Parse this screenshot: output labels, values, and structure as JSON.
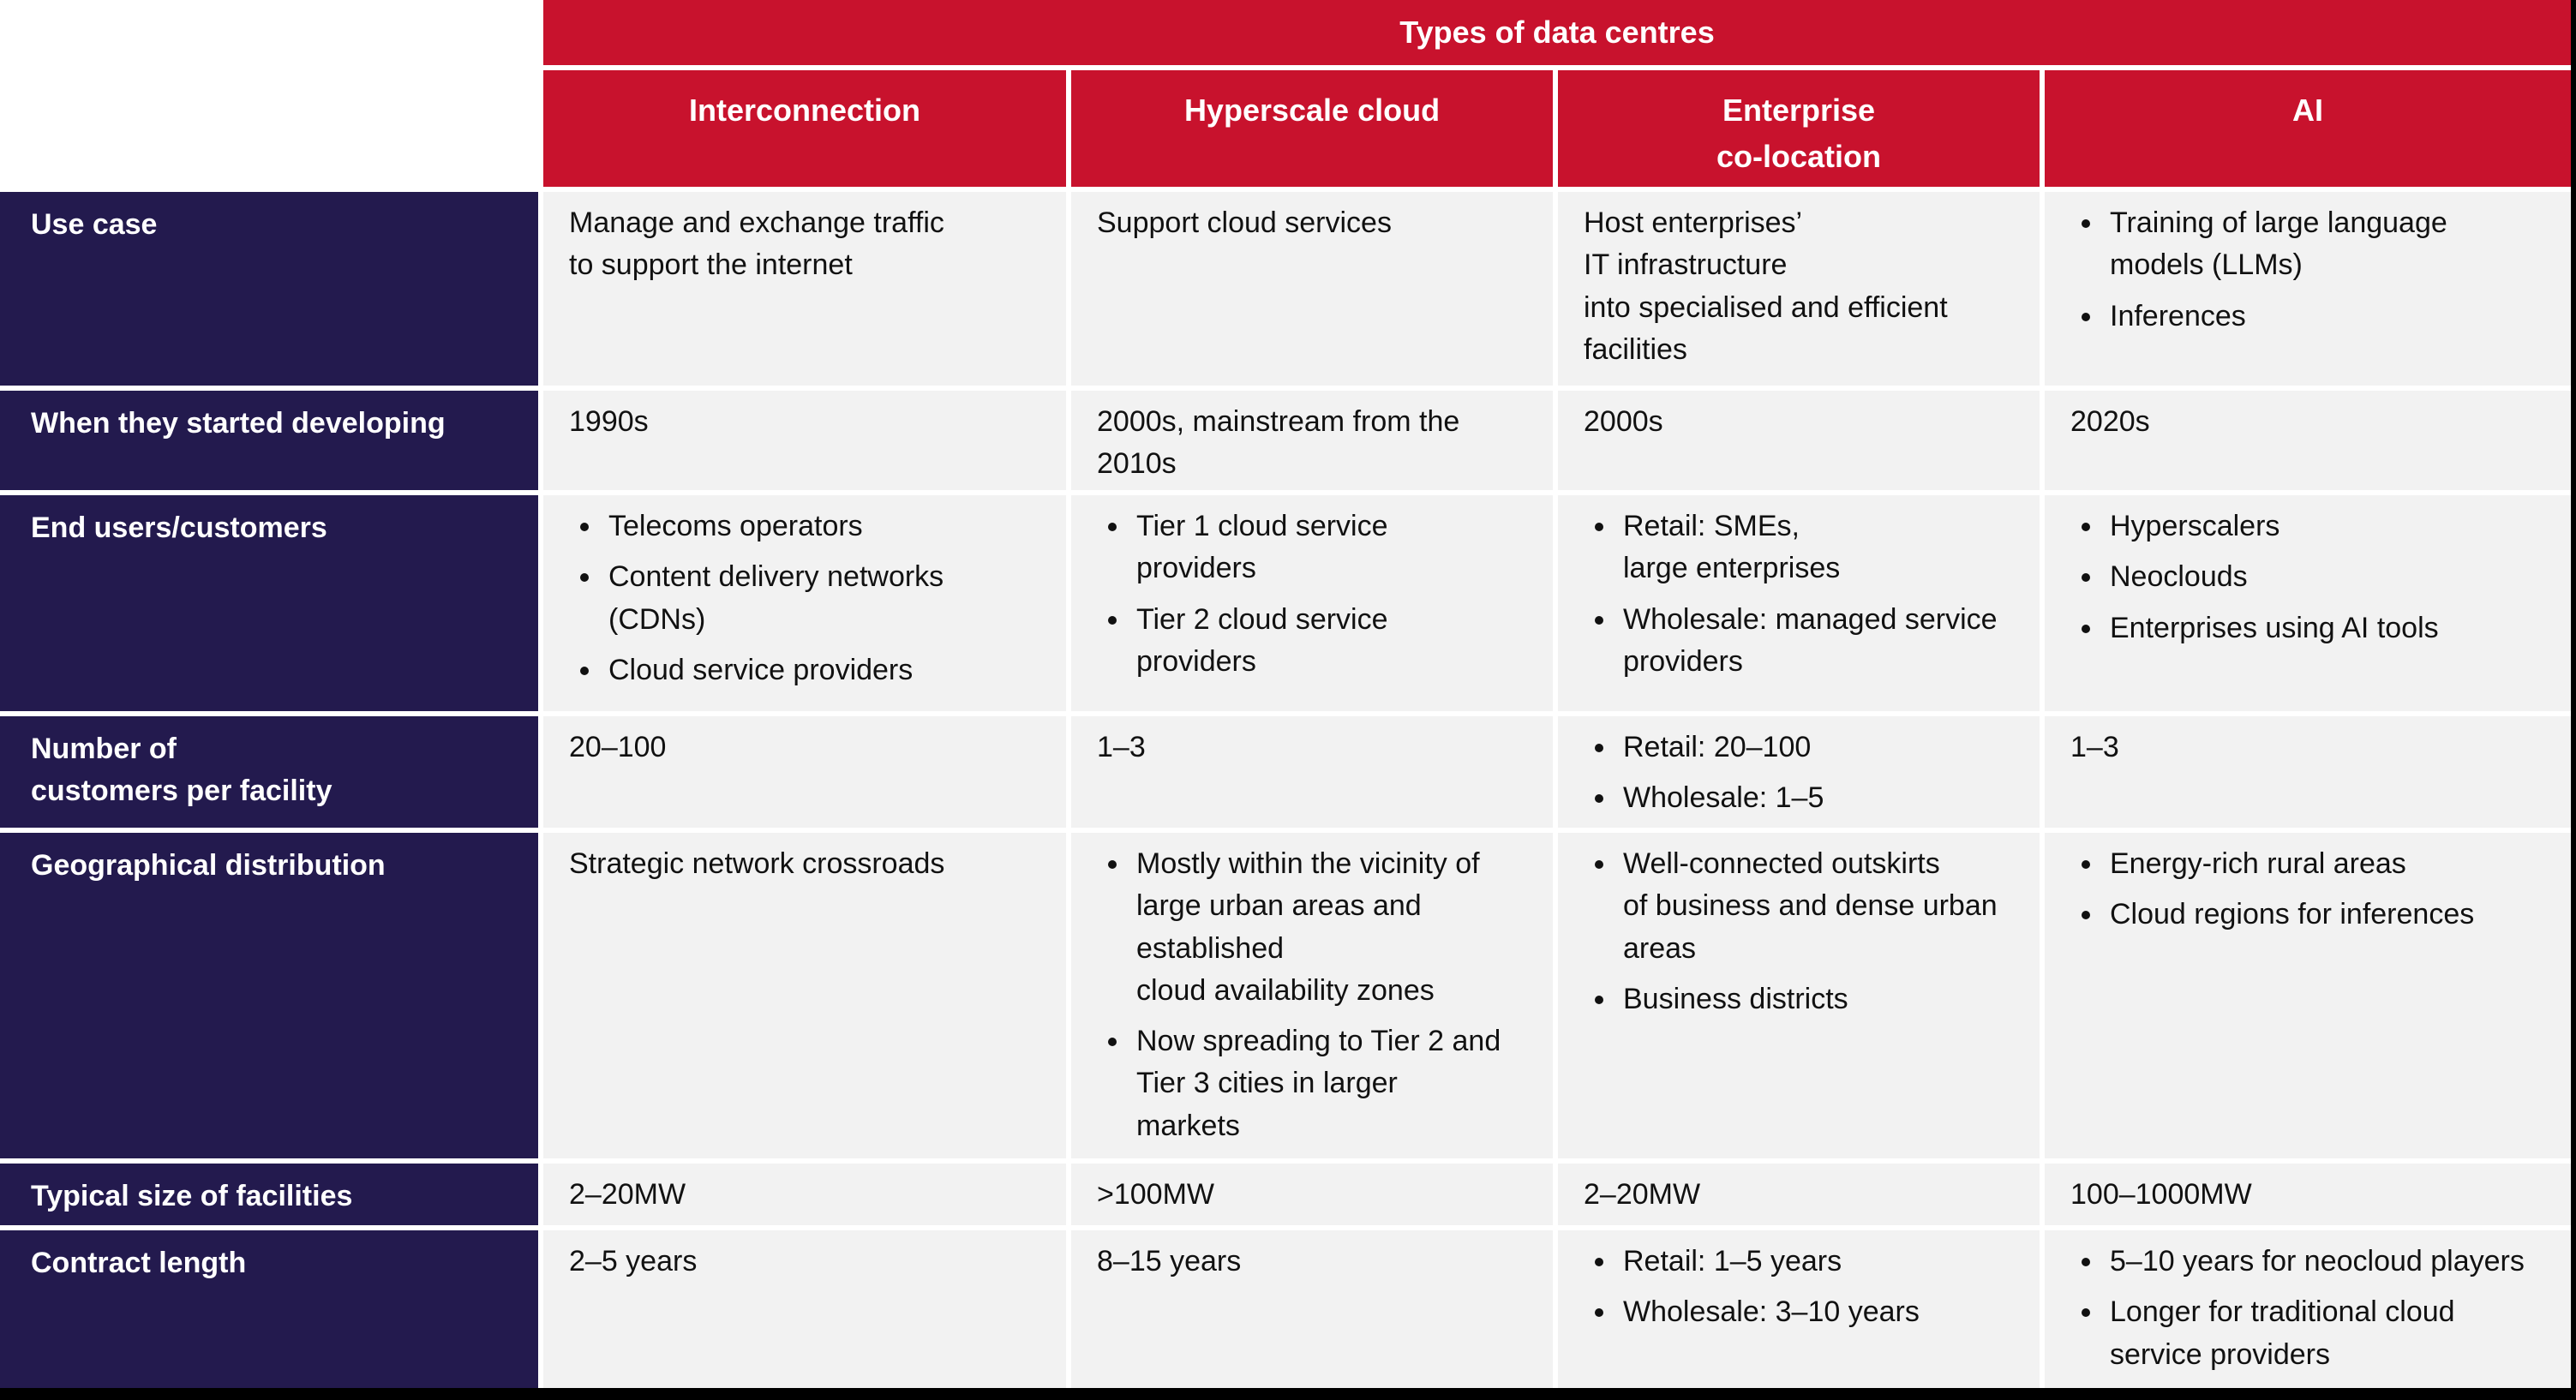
{
  "colors": {
    "header_red": "#C8122D",
    "label_navy": "#231A4E",
    "cell_gray": "#F2F2F2",
    "separator_white": "#FFFFFF",
    "edge_black": "#000000"
  },
  "table": {
    "title": "Types of data centres",
    "columns": [
      "Interconnection",
      "Hyperscale cloud",
      "Enterprise\nco-location",
      "AI"
    ],
    "rows": [
      {
        "label": "Use case",
        "cells": [
          {
            "text": "Manage and exchange traffic\nto support the internet"
          },
          {
            "text": "Support cloud services"
          },
          {
            "text": "Host enterprises’\nIT infrastructure\ninto specialised and efficient\nfacilities"
          },
          {
            "bullets": [
              "Training of large language\nmodels (LLMs)",
              "Inferences"
            ]
          }
        ]
      },
      {
        "label": "When they started developing",
        "cells": [
          {
            "text": "1990s"
          },
          {
            "text": "2000s, mainstream from the\n2010s"
          },
          {
            "text": "2000s"
          },
          {
            "text": "2020s"
          }
        ]
      },
      {
        "label": "End users/customers",
        "cells": [
          {
            "bullets": [
              "Telecoms operators",
              "Content delivery networks\n(CDNs)",
              "Cloud service providers"
            ]
          },
          {
            "bullets": [
              "Tier 1 cloud service\nproviders",
              "Tier 2 cloud service\nproviders"
            ]
          },
          {
            "bullets": [
              "Retail: SMEs,\nlarge enterprises",
              "Wholesale: managed service\nproviders"
            ]
          },
          {
            "bullets": [
              "Hyperscalers",
              "Neoclouds",
              "Enterprises using AI tools"
            ]
          }
        ]
      },
      {
        "label": "Number of\ncustomers per facility",
        "cells": [
          {
            "text": "20–100"
          },
          {
            "text": "1–3"
          },
          {
            "bullets": [
              "Retail: 20–100",
              "Wholesale: 1–5"
            ]
          },
          {
            "text": "1–3"
          }
        ]
      },
      {
        "label": "Geographical distribution",
        "cells": [
          {
            "text": "Strategic network crossroads"
          },
          {
            "bullets": [
              "Mostly within the vicinity of\nlarge urban areas and\nestablished\ncloud availability zones",
              "Now spreading to Tier 2 and\nTier 3 cities in larger\nmarkets"
            ]
          },
          {
            "bullets": [
              "Well-connected outskirts\nof business and dense urban\nareas",
              "Business districts"
            ]
          },
          {
            "bullets": [
              "Energy-rich rural areas",
              "Cloud regions for inferences"
            ]
          }
        ]
      },
      {
        "label": "Typical size of facilities",
        "cells": [
          {
            "text": "2–20MW"
          },
          {
            "text": ">100MW"
          },
          {
            "text": "2–20MW"
          },
          {
            "text": "100–1000MW"
          }
        ]
      },
      {
        "label": "Contract length",
        "cells": [
          {
            "text": "2–5 years"
          },
          {
            "text": "8–15 years"
          },
          {
            "bullets": [
              "Retail: 1–5 years",
              "Wholesale: 3–10 years"
            ]
          },
          {
            "bullets": [
              "5–10 years for neocloud players",
              "Longer for traditional cloud\nservice providers"
            ]
          }
        ]
      }
    ]
  },
  "chart_data": {
    "type": "table",
    "title": "Types of data centres",
    "columns": [
      "Interconnection",
      "Hyperscale cloud",
      "Enterprise co-location",
      "AI"
    ],
    "row_labels": [
      "Use case",
      "When they started developing",
      "End users/customers",
      "Number of customers per facility",
      "Geographical distribution",
      "Typical size of facilities",
      "Contract length"
    ],
    "cells": [
      [
        "Manage and exchange traffic to support the internet",
        "Support cloud services",
        "Host enterprises’ IT infrastructure into specialised and efficient facilities",
        "Training of large language models (LLMs); Inferences"
      ],
      [
        "1990s",
        "2000s, mainstream from the 2010s",
        "2000s",
        "2020s"
      ],
      [
        "Telecoms operators; Content delivery networks (CDNs); Cloud service providers",
        "Tier 1 cloud service providers; Tier 2 cloud service providers",
        "Retail: SMEs, large enterprises; Wholesale: managed service providers",
        "Hyperscalers; Neoclouds; Enterprises using AI tools"
      ],
      [
        "20–100",
        "1–3",
        "Retail: 20–100; Wholesale: 1–5",
        "1–3"
      ],
      [
        "Strategic network crossroads",
        "Mostly within the vicinity of large urban areas and established cloud availability zones; Now spreading to Tier 2 and Tier 3 cities in larger markets",
        "Well-connected outskirts of business and dense urban areas; Business districts",
        "Energy-rich rural areas; Cloud regions for inferences"
      ],
      [
        "2–20MW",
        ">100MW",
        "2–20MW",
        "100–1000MW"
      ],
      [
        "2–5 years",
        "8–15 years",
        "Retail: 1–5 years; Wholesale: 3–10 years",
        "5–10 years for neocloud players; Longer for traditional cloud service providers"
      ]
    ]
  }
}
